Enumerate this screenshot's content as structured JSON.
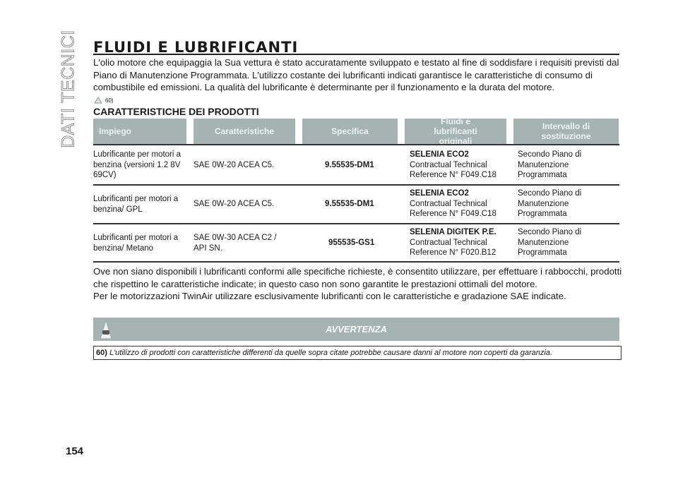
{
  "side_label": "DATI TECNICI",
  "title": "FLUIDI E LUBRIFICANTI",
  "intro": "L'olio motore che equipaggia la Sua vettura è stato accuratamente sviluppato e testato al fine di soddisfare i requisiti previsti dal Piano di Manutenzione Programmata. L'utilizzo costante dei lubrificanti indicati garantisce le caratteristiche di consumo di combustibile ed emissioni. La qualità del lubrificante è determinante per il funzionamento e la durata del motore.",
  "ref": "60)",
  "subtitle": "CARATTERISTICHE DEI PRODOTTI",
  "table": {
    "headers": [
      "Impiego",
      "Caratteristiche",
      "Specifica",
      "Fluidi e lubrificanti originali",
      "Intervallo di sostituzione"
    ],
    "rows": [
      {
        "use": "Lubrificante per motori a benzina (versioni 1.2 8V 69CV)",
        "char": "SAE 0W-20 ACEA C5.",
        "spec": "9.55535-DM1",
        "fluid": "SELENIA ECO2",
        "fluid_l2": "Contractual Technical",
        "fluid_l3": "Reference N° F049.C18",
        "interval": "Secondo Piano di Manutenzione Programmata"
      },
      {
        "use": "Lubrificanti per motori a benzina/ GPL",
        "char": "SAE 0W-20 ACEA C5.",
        "spec": "9.55535-DM1",
        "fluid": "SELENIA ECO2",
        "fluid_l2": "Contractual Technical",
        "fluid_l3": "Reference N° F049.C18",
        "interval": "Secondo Piano di Manutenzione Programmata"
      },
      {
        "use": "Lubrificanti per motori a benzina/ Metano",
        "char": "SAE 0W-30 ACEA C2 / API SN.",
        "spec": "955535-GS1",
        "fluid": "SELENIA DIGITEK P.E.",
        "fluid_l2": "Contractual Technical",
        "fluid_l3": "Reference N° F020.B12",
        "interval": "Secondo Piano di Manutenzione Programmata"
      }
    ]
  },
  "outro": "Ove non siano disponibili i lubrificanti conformi alle specifiche richieste, è consentito utilizzare, per effettuare i rabbocchi, prodotti che rispettino le caratteristiche indicate; in questo caso non sono garantite le prestazioni ottimali del motore.",
  "outro2": "Per le motorizzazioni TwinAir utilizzare esclusivamente lubrificanti con le caratteristiche e gradazione SAE indicate.",
  "warning": {
    "title": "AVVERTENZA",
    "num": "60)",
    "text": "L'utilizzo di prodotti con caratteristiche differenti da quelle sopra citate potrebbe causare danni al motore non coperti da garanzia."
  },
  "page_number": "154",
  "colors": {
    "header_bg": "#a5b4b2"
  }
}
